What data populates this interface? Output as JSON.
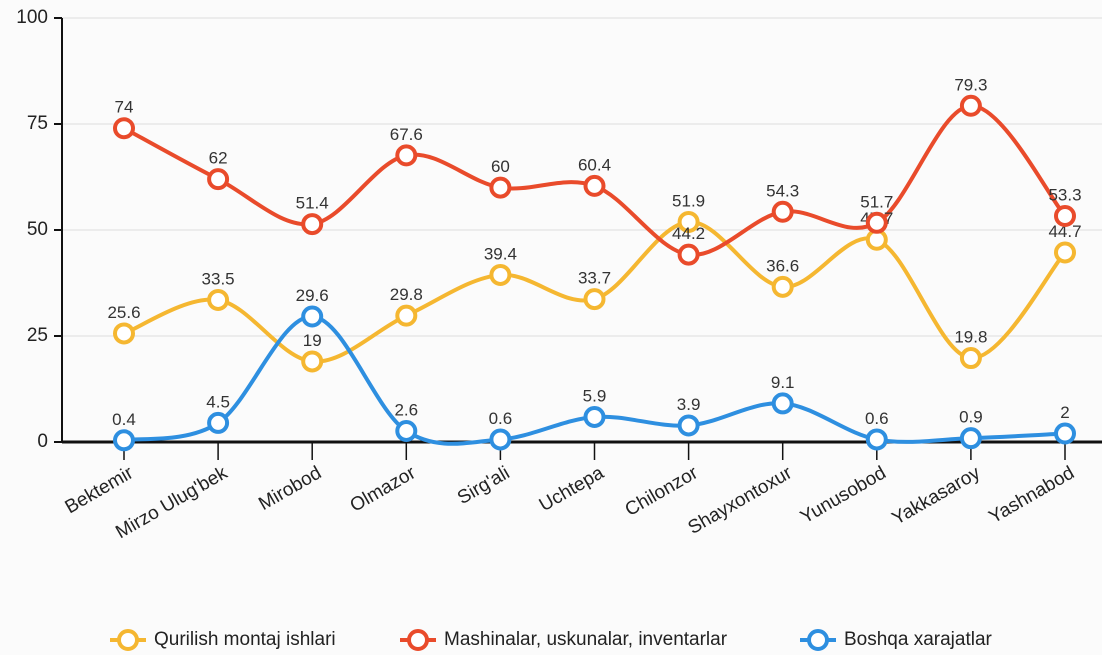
{
  "chart_data": {
    "type": "line",
    "categories": [
      "Bektemir",
      "Mirzo Ulug'bek",
      "Mirobod",
      "Olmazor",
      "Sirg'ali",
      "Uchtepa",
      "Chilonzor",
      "Shayxontoxur",
      "Yunusobod",
      "Yakkasaroy",
      "Yashnabod"
    ],
    "series": [
      {
        "name": "Qurilish montaj ishlari",
        "color": "#f5b731",
        "values": [
          25.6,
          33.5,
          19,
          29.8,
          39.4,
          33.7,
          51.9,
          36.6,
          47.7,
          19.8,
          44.7
        ]
      },
      {
        "name": "Mashinalar, uskunalar, inventarlar",
        "color": "#e94b2b",
        "values": [
          74,
          62,
          51.4,
          67.6,
          60,
          60.4,
          44.2,
          54.3,
          51.7,
          79.3,
          53.3
        ]
      },
      {
        "name": "Boshqa xarajatlar",
        "color": "#2e8fe0",
        "values": [
          0.4,
          4.5,
          29.6,
          2.6,
          0.6,
          5.9,
          3.9,
          9.1,
          0.6,
          0.9,
          2
        ]
      }
    ],
    "ylim": [
      0,
      100
    ],
    "yticks": [
      0,
      25,
      50,
      75,
      100
    ],
    "grid": true,
    "legend": "bottom"
  }
}
